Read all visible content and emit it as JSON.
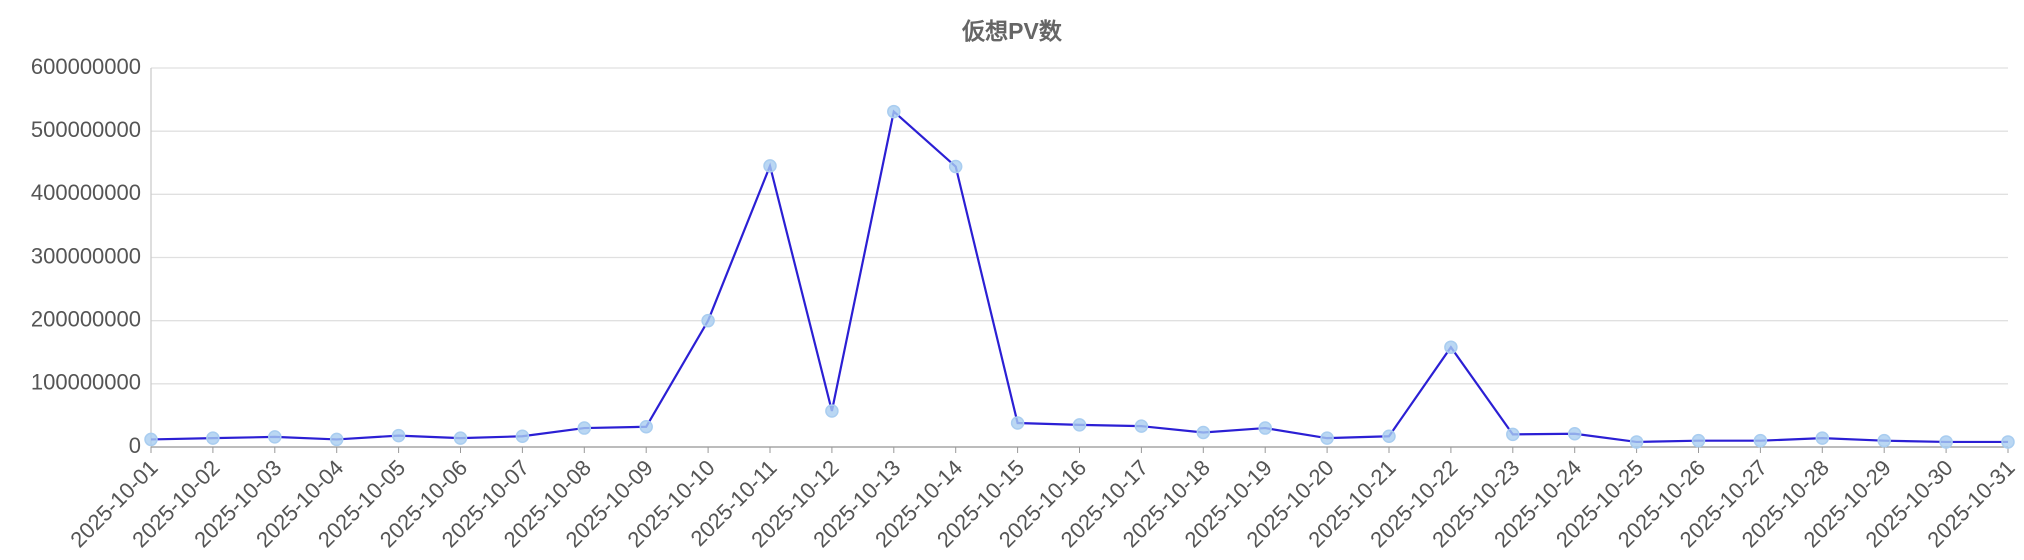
{
  "chart_data": {
    "type": "line",
    "title": "仮想PV数",
    "categories": [
      "2025-10-01",
      "2025-10-02",
      "2025-10-03",
      "2025-10-04",
      "2025-10-05",
      "2025-10-06",
      "2025-10-07",
      "2025-10-08",
      "2025-10-09",
      "2025-10-10",
      "2025-10-11",
      "2025-10-12",
      "2025-10-13",
      "2025-10-14",
      "2025-10-15",
      "2025-10-16",
      "2025-10-17",
      "2025-10-18",
      "2025-10-19",
      "2025-10-20",
      "2025-10-21",
      "2025-10-22",
      "2025-10-23",
      "2025-10-24",
      "2025-10-25",
      "2025-10-26",
      "2025-10-27",
      "2025-10-28",
      "2025-10-29",
      "2025-10-30",
      "2025-10-31"
    ],
    "values": [
      12000000,
      14000000,
      16000000,
      12000000,
      18000000,
      14000000,
      17000000,
      30000000,
      32000000,
      200000000,
      445000000,
      57000000,
      531000000,
      444000000,
      38000000,
      35000000,
      33000000,
      23000000,
      30000000,
      14000000,
      17000000,
      158000000,
      20000000,
      21000000,
      8000000,
      10000000,
      10000000,
      14000000,
      10000000,
      8000000,
      8000000
    ],
    "color": "#2b1fd4",
    "marker_color": "#a9cdf0",
    "ylim": [
      0,
      600000000
    ],
    "yticks": [
      0,
      100000000,
      200000000,
      300000000,
      400000000,
      500000000,
      600000000
    ],
    "grid": true
  }
}
